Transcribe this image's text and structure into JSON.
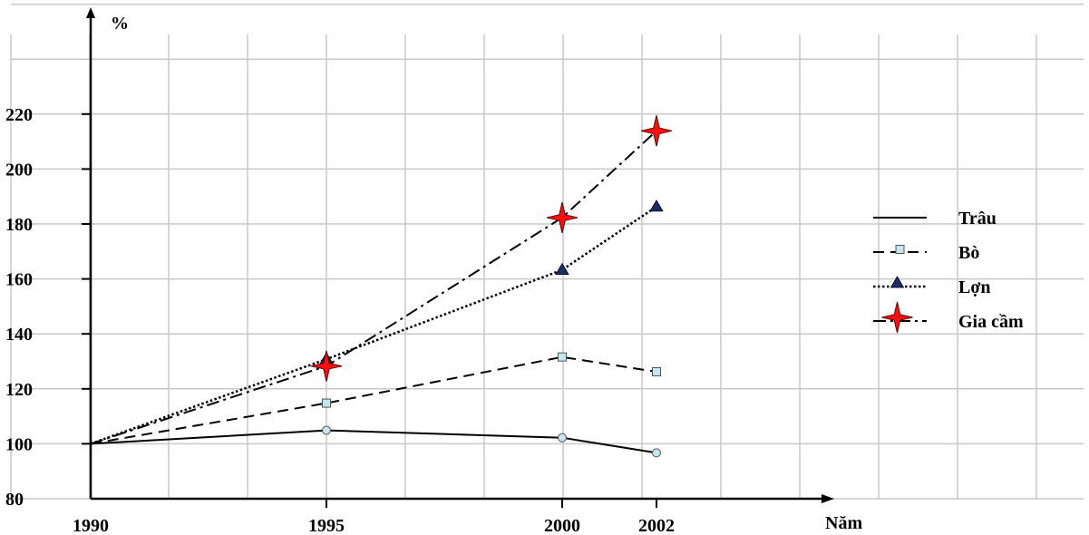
{
  "chart_data": {
    "type": "line",
    "title": "",
    "ylabel": "%",
    "xlabel": "Năm",
    "x": [
      1990,
      1995,
      2000,
      2002
    ],
    "x_tick_labels": [
      "1990",
      "1995",
      "2000",
      "2002"
    ],
    "y_ticks": [
      80,
      100,
      120,
      140,
      160,
      180,
      200,
      220
    ],
    "ylim": [
      80,
      220
    ],
    "grid": true,
    "legend_position": "right",
    "series": [
      {
        "name": "Trâu",
        "values": [
          100,
          104.9,
          102.2,
          96.7
        ],
        "line": "solid",
        "marker": "circle",
        "marker_color": "#c6e6ef"
      },
      {
        "name": "Bò",
        "values": [
          100,
          114.8,
          131.6,
          126.2
        ],
        "line": "dashed",
        "marker": "square",
        "marker_color": "#c6e6ef"
      },
      {
        "name": "Lợn",
        "values": [
          100,
          130.8,
          163.3,
          186.3
        ],
        "line": "dotted",
        "marker": "triangle",
        "marker_color": "#1f2b6b"
      },
      {
        "name": "Gia cầm",
        "values": [
          100,
          128.3,
          182.3,
          213.9
        ],
        "line": "dashdot",
        "marker": "star",
        "marker_color": "#ff1010"
      }
    ]
  }
}
